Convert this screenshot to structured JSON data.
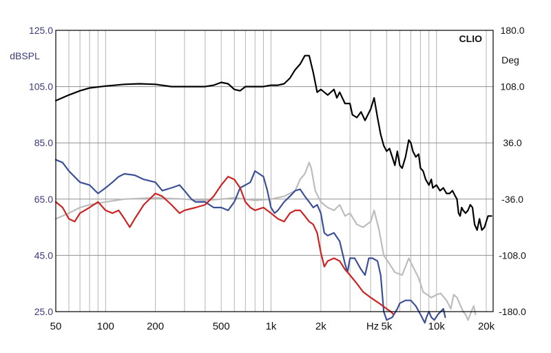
{
  "chart_data": {
    "type": "line",
    "brand": "CLIO",
    "x_scale": "log",
    "xlim": [
      50,
      22000
    ],
    "x_unit_label": "Hz",
    "x_ticks": [
      {
        "value": 50,
        "label": "50"
      },
      {
        "value": 100,
        "label": "100"
      },
      {
        "value": 200,
        "label": "200"
      },
      {
        "value": 500,
        "label": "500"
      },
      {
        "value": 1000,
        "label": "1k"
      },
      {
        "value": 2000,
        "label": "2k"
      },
      {
        "value": 5000,
        "label": "5k"
      },
      {
        "value": 10000,
        "label": "10k"
      },
      {
        "value": 20000,
        "label": "20k"
      }
    ],
    "y_left": {
      "label": "dBSPL",
      "lim": [
        25,
        125
      ],
      "ticks": [
        {
          "value": 125,
          "label": "125.0"
        },
        {
          "value": 105,
          "label": "105.0"
        },
        {
          "value": 85,
          "label": "85.0"
        },
        {
          "value": 65,
          "label": "65.0"
        },
        {
          "value": 45,
          "label": "45.0"
        },
        {
          "value": 25,
          "label": "25.0"
        }
      ]
    },
    "y_right": {
      "label": "Deg",
      "lim": [
        -180,
        180
      ],
      "ticks": [
        {
          "value": 180,
          "label": "180.0"
        },
        {
          "value": 108,
          "label": "108.0"
        },
        {
          "value": 36,
          "label": "36.0"
        },
        {
          "value": -36,
          "label": "-36.0"
        },
        {
          "value": -108,
          "label": "-108.0"
        },
        {
          "value": -180,
          "label": "-180.0"
        }
      ]
    },
    "grid": true,
    "colors": {
      "grid": "#b4b4b4",
      "axis_left_text": "#3a3a7a",
      "black": "#000000",
      "blue": "#3b4f96",
      "red": "#cc2222",
      "gray": "#bcbcbc"
    },
    "series": [
      {
        "color_key": "gray",
        "points": [
          [
            50,
            58
          ],
          [
            60,
            60
          ],
          [
            70,
            62
          ],
          [
            80,
            63
          ],
          [
            100,
            64
          ],
          [
            130,
            65
          ],
          [
            200,
            65.5
          ],
          [
            300,
            65
          ],
          [
            400,
            64.5
          ],
          [
            500,
            65
          ],
          [
            600,
            65.5
          ],
          [
            700,
            65
          ],
          [
            800,
            64.5
          ],
          [
            1000,
            65
          ],
          [
            1200,
            66
          ],
          [
            1400,
            68
          ],
          [
            1500,
            72
          ],
          [
            1600,
            74
          ],
          [
            1700,
            78
          ],
          [
            1750,
            76
          ],
          [
            1850,
            68
          ],
          [
            2000,
            64
          ],
          [
            2200,
            62
          ],
          [
            2400,
            61
          ],
          [
            2600,
            63
          ],
          [
            2800,
            59
          ],
          [
            3000,
            60
          ],
          [
            3300,
            56
          ],
          [
            3600,
            55
          ],
          [
            4000,
            57
          ],
          [
            4200,
            61
          ],
          [
            4500,
            54
          ],
          [
            4800,
            45
          ],
          [
            5200,
            42
          ],
          [
            5600,
            39
          ],
          [
            6200,
            38
          ],
          [
            6800,
            44
          ],
          [
            7200,
            41
          ],
          [
            7800,
            37
          ],
          [
            8300,
            32
          ],
          [
            8800,
            31
          ],
          [
            9300,
            30
          ],
          [
            10000,
            31
          ],
          [
            10600,
            31.5
          ],
          [
            11500,
            29
          ],
          [
            12200,
            26
          ],
          [
            12700,
            31
          ],
          [
            13300,
            30
          ],
          [
            14000,
            27
          ],
          [
            14500,
            25
          ],
          [
            15000,
            24
          ],
          [
            15500,
            22
          ],
          [
            16500,
            26
          ],
          [
            16800,
            27
          ],
          [
            17200,
            24
          ]
        ]
      },
      {
        "color_key": "black",
        "points": [
          [
            50,
            100
          ],
          [
            60,
            102
          ],
          [
            70,
            103.5
          ],
          [
            80,
            104.5
          ],
          [
            100,
            105.2
          ],
          [
            130,
            105.8
          ],
          [
            160,
            106
          ],
          [
            200,
            105.8
          ],
          [
            250,
            105
          ],
          [
            300,
            105
          ],
          [
            350,
            105
          ],
          [
            400,
            105
          ],
          [
            450,
            105.5
          ],
          [
            500,
            106.5
          ],
          [
            550,
            106
          ],
          [
            600,
            104
          ],
          [
            650,
            103.5
          ],
          [
            700,
            105
          ],
          [
            800,
            105
          ],
          [
            900,
            105
          ],
          [
            1000,
            105.5
          ],
          [
            1100,
            105.5
          ],
          [
            1200,
            106
          ],
          [
            1300,
            108
          ],
          [
            1400,
            111
          ],
          [
            1500,
            113
          ],
          [
            1600,
            116
          ],
          [
            1700,
            116
          ],
          [
            1800,
            110
          ],
          [
            1900,
            103
          ],
          [
            2000,
            104
          ],
          [
            2100,
            103
          ],
          [
            2200,
            102
          ],
          [
            2400,
            104
          ],
          [
            2500,
            101
          ],
          [
            2600,
            103
          ],
          [
            2800,
            99
          ],
          [
            3000,
            99
          ],
          [
            3100,
            95
          ],
          [
            3300,
            94
          ],
          [
            3500,
            96
          ],
          [
            3700,
            93
          ],
          [
            4000,
            97
          ],
          [
            4200,
            101
          ],
          [
            4400,
            94
          ],
          [
            4600,
            88
          ],
          [
            4800,
            84
          ],
          [
            5000,
            82
          ],
          [
            5200,
            83
          ],
          [
            5400,
            80
          ],
          [
            5600,
            77
          ],
          [
            5800,
            82
          ],
          [
            6000,
            77
          ],
          [
            6200,
            76
          ],
          [
            6500,
            80
          ],
          [
            6800,
            86
          ],
          [
            7000,
            85
          ],
          [
            7200,
            82
          ],
          [
            7500,
            80
          ],
          [
            7800,
            81
          ],
          [
            8000,
            76
          ],
          [
            8300,
            75
          ],
          [
            8600,
            72
          ],
          [
            9000,
            70
          ],
          [
            9300,
            72
          ],
          [
            9500,
            69
          ],
          [
            10000,
            70
          ],
          [
            10500,
            68
          ],
          [
            11000,
            69
          ],
          [
            11500,
            67
          ],
          [
            12000,
            67
          ],
          [
            12500,
            68
          ],
          [
            13000,
            66
          ],
          [
            13300,
            65
          ],
          [
            13600,
            60
          ],
          [
            13900,
            59
          ],
          [
            14200,
            62
          ],
          [
            14500,
            61
          ],
          [
            15000,
            60
          ],
          [
            15500,
            61
          ],
          [
            16000,
            63
          ],
          [
            16500,
            62
          ],
          [
            17000,
            56
          ],
          [
            17600,
            54
          ],
          [
            18200,
            58
          ],
          [
            18800,
            54
          ],
          [
            19500,
            55
          ],
          [
            20500,
            59
          ],
          [
            21500,
            59
          ]
        ]
      },
      {
        "color_key": "blue",
        "points": [
          [
            50,
            79
          ],
          [
            55,
            78
          ],
          [
            60,
            75
          ],
          [
            70,
            71
          ],
          [
            80,
            70
          ],
          [
            90,
            67
          ],
          [
            100,
            69
          ],
          [
            110,
            71
          ],
          [
            120,
            73
          ],
          [
            130,
            74
          ],
          [
            150,
            73.5
          ],
          [
            170,
            72
          ],
          [
            200,
            71
          ],
          [
            220,
            68
          ],
          [
            250,
            69
          ],
          [
            280,
            70
          ],
          [
            300,
            68
          ],
          [
            330,
            65
          ],
          [
            350,
            64
          ],
          [
            400,
            64
          ],
          [
            450,
            62
          ],
          [
            500,
            62
          ],
          [
            550,
            61
          ],
          [
            600,
            64
          ],
          [
            650,
            69
          ],
          [
            700,
            70
          ],
          [
            750,
            71
          ],
          [
            800,
            75
          ],
          [
            900,
            73
          ],
          [
            950,
            68
          ],
          [
            1000,
            62
          ],
          [
            1050,
            60
          ],
          [
            1100,
            61
          ],
          [
            1200,
            64
          ],
          [
            1300,
            66
          ],
          [
            1400,
            68
          ],
          [
            1500,
            68.5
          ],
          [
            1600,
            66
          ],
          [
            1700,
            64
          ],
          [
            1800,
            62
          ],
          [
            1900,
            63
          ],
          [
            2000,
            60
          ],
          [
            2100,
            53
          ],
          [
            2200,
            52
          ],
          [
            2400,
            53
          ],
          [
            2600,
            50
          ],
          [
            2800,
            42
          ],
          [
            2900,
            39
          ],
          [
            3000,
            44
          ],
          [
            3200,
            44
          ],
          [
            3500,
            40
          ],
          [
            3700,
            38
          ],
          [
            3900,
            44
          ],
          [
            4100,
            44
          ],
          [
            4400,
            43
          ],
          [
            4600,
            38
          ],
          [
            4800,
            25
          ],
          [
            5000,
            22
          ],
          [
            5400,
            23
          ],
          [
            5800,
            26
          ],
          [
            6000,
            28
          ],
          [
            6500,
            29
          ],
          [
            7000,
            29
          ],
          [
            7500,
            27
          ],
          [
            8000,
            24
          ],
          [
            8500,
            21
          ],
          [
            8700,
            23
          ],
          [
            9000,
            25
          ],
          [
            9300,
            23
          ],
          [
            9700,
            22
          ],
          [
            10200,
            24
          ],
          [
            10600,
            25
          ],
          [
            11000,
            26
          ],
          [
            11300,
            23
          ]
        ]
      },
      {
        "color_key": "red",
        "points": [
          [
            50,
            64
          ],
          [
            55,
            62
          ],
          [
            60,
            58
          ],
          [
            65,
            57
          ],
          [
            70,
            60
          ],
          [
            80,
            62
          ],
          [
            90,
            64
          ],
          [
            100,
            61
          ],
          [
            110,
            60
          ],
          [
            120,
            61
          ],
          [
            130,
            58
          ],
          [
            140,
            55
          ],
          [
            150,
            58
          ],
          [
            170,
            63
          ],
          [
            200,
            67
          ],
          [
            220,
            66
          ],
          [
            250,
            63
          ],
          [
            280,
            60
          ],
          [
            300,
            61
          ],
          [
            350,
            62
          ],
          [
            400,
            63
          ],
          [
            450,
            66
          ],
          [
            500,
            70
          ],
          [
            550,
            73
          ],
          [
            600,
            72
          ],
          [
            650,
            69
          ],
          [
            700,
            64
          ],
          [
            750,
            62
          ],
          [
            800,
            61
          ],
          [
            900,
            62
          ],
          [
            1000,
            60
          ],
          [
            1100,
            58
          ],
          [
            1200,
            57
          ],
          [
            1300,
            60
          ],
          [
            1400,
            61
          ],
          [
            1500,
            61
          ],
          [
            1600,
            59
          ],
          [
            1700,
            57
          ],
          [
            1800,
            56
          ],
          [
            1900,
            53
          ],
          [
            2000,
            46
          ],
          [
            2100,
            41
          ],
          [
            2200,
            43
          ],
          [
            2400,
            44
          ],
          [
            2600,
            43
          ],
          [
            2800,
            40
          ],
          [
            3000,
            38
          ],
          [
            3300,
            35
          ],
          [
            3600,
            32
          ],
          [
            4000,
            30
          ],
          [
            4500,
            28
          ],
          [
            5000,
            26
          ],
          [
            5300,
            25
          ],
          [
            5500,
            24
          ]
        ]
      }
    ]
  }
}
